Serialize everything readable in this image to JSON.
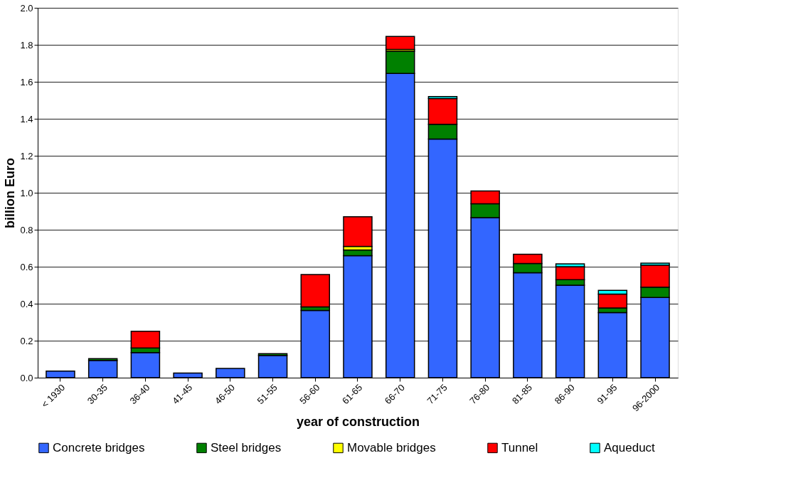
{
  "chart_data": {
    "type": "bar",
    "stacked": true,
    "xlabel": "year of construction",
    "ylabel": "billion Euro",
    "categories": [
      "< 1930",
      "30-35",
      "36-40",
      "41-45",
      "46-50",
      "51-55",
      "56-60",
      "61-65",
      "66-70",
      "71-75",
      "76-80",
      "81-85",
      "86-90",
      "91-95",
      "96-2000"
    ],
    "series": [
      {
        "name": "Concrete bridges",
        "color": "#3366ff",
        "values": [
          0.036,
          0.093,
          0.136,
          0.025,
          0.05,
          0.12,
          0.363,
          0.66,
          1.645,
          1.29,
          0.865,
          0.567,
          0.5,
          0.352,
          0.434
        ]
      },
      {
        "name": "Steel bridges",
        "color": "#008000",
        "values": [
          null,
          0.01,
          0.025,
          null,
          null,
          0.01,
          0.02,
          0.03,
          0.12,
          0.08,
          0.075,
          0.05,
          0.03,
          0.025,
          0.055
        ]
      },
      {
        "name": "Movable bridges",
        "color": "#ffff00",
        "values": [
          null,
          null,
          null,
          null,
          null,
          null,
          null,
          0.02,
          0.01,
          null,
          null,
          null,
          null,
          null,
          null
        ]
      },
      {
        "name": "Tunnel",
        "color": "#ff0000",
        "values": [
          null,
          null,
          0.09,
          null,
          null,
          null,
          0.175,
          0.16,
          0.07,
          0.14,
          0.07,
          0.05,
          0.07,
          0.075,
          0.12
        ]
      },
      {
        "name": "Aqueduct",
        "color": "#00ffff",
        "values": [
          null,
          null,
          null,
          null,
          null,
          null,
          null,
          null,
          null,
          0.01,
          null,
          null,
          0.015,
          0.02,
          0.01
        ]
      }
    ],
    "ylim": [
      0,
      2
    ],
    "yticks": [
      {
        "value": 0,
        "label": "0.0"
      },
      0.2,
      0.4,
      0.6,
      0.8,
      {
        "value": 1,
        "label": "1.0"
      },
      1.2,
      1.4,
      1.6,
      1.8,
      {
        "value": 2,
        "label": "2.0"
      }
    ],
    "grid": "y",
    "legend": "bottom"
  }
}
